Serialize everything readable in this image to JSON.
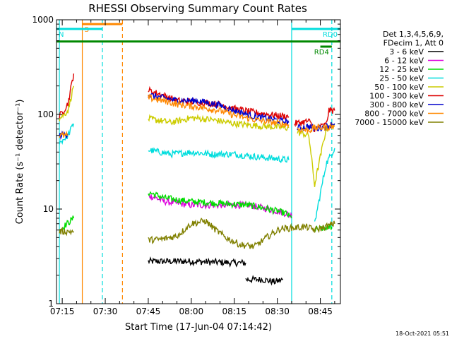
{
  "chart_data": {
    "type": "line",
    "title": "RHESSI Observing Summary Count Rates",
    "xlabel": "Start Time (17-Jun-04 07:14:42)",
    "ylabel": "Count Rate (s⁻¹ detector⁻¹)",
    "yscale": "log",
    "xlim_minutes": [
      -2,
      97
    ],
    "ylim": [
      1,
      1000
    ],
    "x_ticks": [
      {
        "label": "07:15",
        "minutes": 0
      },
      {
        "label": "07:30",
        "minutes": 15
      },
      {
        "label": "07:45",
        "minutes": 30
      },
      {
        "label": "08:00",
        "minutes": 45
      },
      {
        "label": "08:15",
        "minutes": 60
      },
      {
        "label": "08:30",
        "minutes": 75
      },
      {
        "label": "08:45",
        "minutes": 90
      }
    ],
    "y_ticks": [
      {
        "label": "1",
        "value": 1
      },
      {
        "label": "10",
        "value": 10
      },
      {
        "label": "100",
        "value": 100
      },
      {
        "label": "1000",
        "value": 1000
      }
    ],
    "legend_header": [
      "Det 1,3,4,5,6,9,",
      "FDecim 1, Att 0"
    ],
    "series": [
      {
        "name": "3 - 6 keV",
        "color": "#000000",
        "segments": [
          [
            [
              30,
              2.8
            ],
            [
              45,
              2.8
            ],
            [
              60,
              2.7
            ],
            [
              64,
              2.7
            ]
          ],
          [
            [
              64,
              1.8
            ],
            [
              70,
              1.8
            ],
            [
              74,
              1.7
            ],
            [
              77,
              1.8
            ]
          ]
        ]
      },
      {
        "name": "6 - 12 keV",
        "color": "#dd00dd",
        "segments": [
          [
            [
              30,
              14
            ],
            [
              36,
              12
            ],
            [
              45,
              11
            ],
            [
              55,
              11
            ],
            [
              65,
              11
            ],
            [
              72,
              10
            ],
            [
              78,
              9
            ],
            [
              80,
              8.5
            ]
          ]
        ]
      },
      {
        "name": "12 - 25 keV",
        "color": "#00dd00",
        "segments": [
          [
            [
              -1,
              6
            ],
            [
              4,
              8
            ]
          ],
          [
            [
              30,
              15
            ],
            [
              36,
              13
            ],
            [
              45,
              12
            ],
            [
              55,
              11.5
            ],
            [
              65,
              11
            ],
            [
              72,
              10
            ],
            [
              78,
              9
            ],
            [
              80,
              8
            ]
          ],
          [
            [
              88,
              6
            ],
            [
              94,
              6.5
            ]
          ]
        ]
      },
      {
        "name": "25 - 50 keV",
        "color": "#00dddd",
        "segments": [
          [
            [
              -1,
              50
            ],
            [
              2,
              60
            ],
            [
              4,
              80
            ]
          ],
          [
            [
              30,
              42
            ],
            [
              38,
              38
            ],
            [
              45,
              40
            ],
            [
              52,
              38
            ],
            [
              60,
              38
            ],
            [
              70,
              35
            ],
            [
              79,
              33
            ]
          ],
          [
            [
              88,
              7
            ],
            [
              92,
              30
            ],
            [
              95,
              44
            ]
          ]
        ]
      },
      {
        "name": "50 - 100 keV",
        "color": "#cccc00",
        "segments": [
          [
            [
              -1,
              90
            ],
            [
              2,
              110
            ],
            [
              4,
              200
            ]
          ],
          [
            [
              30,
              90
            ],
            [
              38,
              82
            ],
            [
              45,
              92
            ],
            [
              52,
              88
            ],
            [
              60,
              80
            ],
            [
              70,
              75
            ],
            [
              79,
              72
            ]
          ],
          [
            [
              82,
              65
            ],
            [
              86,
              60
            ],
            [
              88,
              18
            ],
            [
              92,
              70
            ],
            [
              95,
              78
            ]
          ]
        ]
      },
      {
        "name": "100 - 300 keV",
        "color": "#dd0000",
        "segments": [
          [
            [
              -1,
              95
            ],
            [
              2,
              130
            ],
            [
              4,
              270
            ]
          ],
          [
            [
              30,
              180
            ],
            [
              35,
              160
            ],
            [
              40,
              140
            ],
            [
              47,
              135
            ],
            [
              55,
              128
            ],
            [
              60,
              115
            ],
            [
              67,
              105
            ],
            [
              74,
              98
            ],
            [
              79,
              95
            ]
          ],
          [
            [
              81,
              80
            ],
            [
              86,
              85
            ],
            [
              88,
              70
            ],
            [
              92,
              78
            ],
            [
              93,
              110
            ],
            [
              95,
              110
            ]
          ]
        ]
      },
      {
        "name": "300 - 800 keV",
        "color": "#0000cc",
        "segments": [
          [
            [
              -1,
              60
            ],
            [
              2,
              62
            ]
          ],
          [
            [
              30,
              160
            ],
            [
              35,
              150
            ],
            [
              40,
              140
            ],
            [
              47,
              140
            ],
            [
              55,
              125
            ],
            [
              60,
              110
            ],
            [
              67,
              95
            ],
            [
              74,
              88
            ],
            [
              79,
              82
            ]
          ],
          [
            [
              82,
              72
            ],
            [
              86,
              75
            ],
            [
              88,
              70
            ],
            [
              92,
              75
            ],
            [
              95,
              80
            ]
          ]
        ]
      },
      {
        "name": "800 - 7000 keV",
        "color": "#ff8800",
        "segments": [
          [
            [
              -1,
              60
            ],
            [
              2,
              60
            ]
          ],
          [
            [
              30,
              150
            ],
            [
              35,
              140
            ],
            [
              40,
              128
            ],
            [
              47,
              120
            ],
            [
              55,
              110
            ],
            [
              60,
              98
            ],
            [
              67,
              88
            ],
            [
              74,
              82
            ],
            [
              79,
              78
            ]
          ],
          [
            [
              82,
              70
            ],
            [
              86,
              68
            ],
            [
              88,
              72
            ],
            [
              92,
              73
            ],
            [
              95,
              75
            ]
          ]
        ]
      },
      {
        "name": "7000 - 15000 keV",
        "color": "#808000",
        "segments": [
          [
            [
              -1,
              5.8
            ],
            [
              4,
              5.8
            ]
          ],
          [
            [
              30,
              4.7
            ],
            [
              35,
              4.8
            ],
            [
              40,
              5.2
            ],
            [
              45,
              7.0
            ],
            [
              50,
              7.5
            ],
            [
              53,
              6.2
            ],
            [
              57,
              5.0
            ],
            [
              62,
              4.2
            ],
            [
              67,
              4.0
            ],
            [
              72,
              5.2
            ],
            [
              76,
              6.2
            ],
            [
              80,
              6.3
            ],
            [
              85,
              6.5
            ],
            [
              88,
              6
            ],
            [
              92,
              6.5
            ],
            [
              95,
              7
            ]
          ]
        ]
      }
    ],
    "vertical_lines": [
      {
        "minutes": -1,
        "color": "#00dddd",
        "style": "solid"
      },
      {
        "minutes": 7,
        "color": "#ff8800",
        "style": "solid"
      },
      {
        "minutes": 14,
        "color": "#00dddd",
        "style": "dashed"
      },
      {
        "minutes": 21,
        "color": "#ff8800",
        "style": "dashed"
      },
      {
        "minutes": 80,
        "color": "#00dddd",
        "style": "solid"
      },
      {
        "minutes": 94,
        "color": "#00dddd",
        "style": "dashed"
      }
    ],
    "annotations": [
      {
        "label": "S",
        "color": "#ff8800",
        "x_start": 7,
        "x_end": 21,
        "value": 900
      },
      {
        "label": "N",
        "color": "#00dddd",
        "x_start": -2,
        "x_end": 14,
        "value": 800
      },
      {
        "label": "RD0",
        "color": "#00dddd",
        "x_start": 80,
        "x_end": 97,
        "value": 800
      },
      {
        "label": "RD4",
        "color": "#008800",
        "x_start": 90,
        "x_end": 94,
        "value": 520
      },
      {
        "label": "",
        "color": "#008800",
        "x_start": -2,
        "x_end": 97,
        "value": 590
      }
    ]
  },
  "footer": {
    "timestamp": "18-Oct-2021 05:51"
  }
}
